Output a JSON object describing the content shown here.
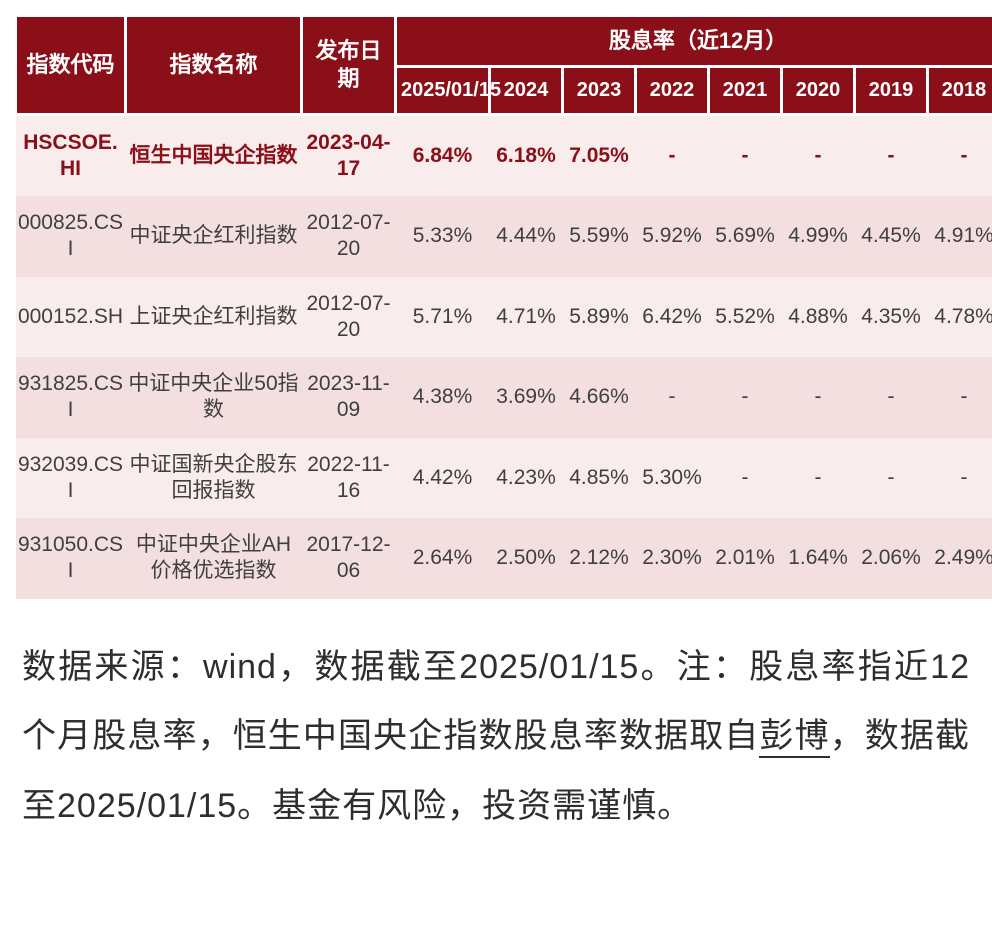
{
  "colors": {
    "header_bg": "#8a0f18",
    "header_fg": "#ffffff",
    "row_odd": "#f9eced",
    "row_even": "#f4dfe0",
    "highlight": "#8a0f18",
    "body_text": "#3f3f3f",
    "note_text": "#2e2e2e"
  },
  "table": {
    "header": {
      "code": "指数代码",
      "name": "指数名称",
      "date": "发布日期",
      "group": "股息率（近12月）",
      "years": [
        "2025/01/15",
        "2024",
        "2023",
        "2022",
        "2021",
        "2020",
        "2019",
        "2018"
      ]
    },
    "rows": [
      {
        "highlight": true,
        "code": "HSCSOE.HI",
        "name": "恒生中国央企指数",
        "date": "2023-04-17",
        "y": [
          "6.84%",
          "6.18%",
          "7.05%",
          "-",
          "-",
          "-",
          "-",
          "-"
        ]
      },
      {
        "highlight": false,
        "code": "000825.CSI",
        "name": "中证央企红利指数",
        "date": "2012-07-20",
        "y": [
          "5.33%",
          "4.44%",
          "5.59%",
          "5.92%",
          "5.69%",
          "4.99%",
          "4.45%",
          "4.91%"
        ]
      },
      {
        "highlight": false,
        "code": "000152.SH",
        "name": "上证央企红利指数",
        "date": "2012-07-20",
        "y": [
          "5.71%",
          "4.71%",
          "5.89%",
          "6.42%",
          "5.52%",
          "4.88%",
          "4.35%",
          "4.78%"
        ]
      },
      {
        "highlight": false,
        "code": "931825.CSI",
        "name": "中证中央企业50指数",
        "date": "2023-11-09",
        "y": [
          "4.38%",
          "3.69%",
          "4.66%",
          "-",
          "-",
          "-",
          "-",
          "-"
        ]
      },
      {
        "highlight": false,
        "code": "932039.CSI",
        "name": "中证国新央企股东回报指数",
        "date": "2022-11-16",
        "y": [
          "4.42%",
          "4.23%",
          "4.85%",
          "5.30%",
          "-",
          "-",
          "-",
          "-"
        ]
      },
      {
        "highlight": false,
        "code": "931050.CSI",
        "name": "中证中央企业AH价格优选指数",
        "date": "2017-12-06",
        "y": [
          "2.64%",
          "2.50%",
          "2.12%",
          "2.30%",
          "2.01%",
          "1.64%",
          "2.06%",
          "2.49%"
        ]
      }
    ]
  },
  "note": {
    "t1": "数据来源：wind，数据截至2025/01/15。注：股息率指近12个月股息率，恒生中国央企指数股息率数据取自",
    "underlined": "彭博",
    "t2": "，数据截至2025/01/15。基金有风险，投资需谨慎。"
  }
}
